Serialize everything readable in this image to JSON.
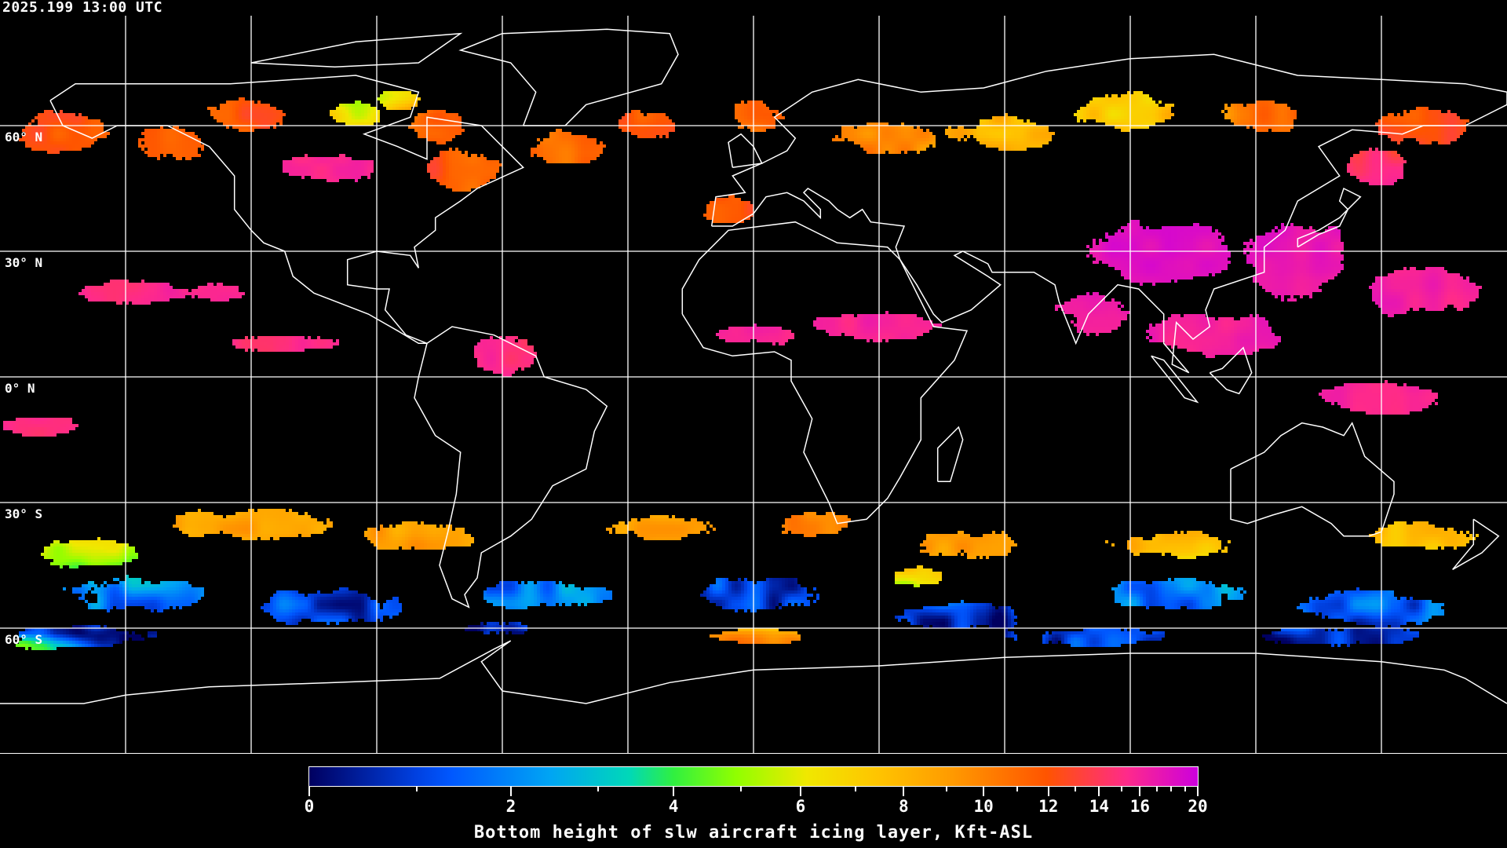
{
  "header": {
    "timestamp": "2025.199 13:00 UTC"
  },
  "map": {
    "projection": "equirectangular",
    "lon_range": [
      -180,
      180
    ],
    "lat_range": [
      -90,
      90
    ],
    "grid_spacing_deg": 30,
    "grid_color": "#ffffff",
    "coastline_color": "#ffffff",
    "lat_labels": [
      {
        "lat": 60,
        "text": "60° N"
      },
      {
        "lat": 30,
        "text": "30° N"
      },
      {
        "lat": 0,
        "text": "0° N"
      },
      {
        "lat": -30,
        "text": "30° S"
      },
      {
        "lat": -60,
        "text": "60° S"
      }
    ]
  },
  "colorbar": {
    "title": "Bottom height of slw aircraft icing layer, Kft-ASL",
    "range": [
      0,
      20
    ],
    "major_ticks": [
      {
        "value": 0,
        "label": "0"
      },
      {
        "value": 2,
        "label": "2"
      },
      {
        "value": 4,
        "label": "4"
      },
      {
        "value": 6,
        "label": "6"
      },
      {
        "value": 8,
        "label": "8"
      },
      {
        "value": 10,
        "label": "10"
      },
      {
        "value": 12,
        "label": "12"
      },
      {
        "value": 14,
        "label": "14"
      },
      {
        "value": 16,
        "label": "16"
      },
      {
        "value": 20,
        "label": "20"
      }
    ],
    "minor_ticks": [
      1,
      3,
      5,
      7,
      9,
      11,
      13,
      15,
      17,
      18,
      19
    ],
    "colors": [
      "#000060",
      "#0040e0",
      "#0058ff",
      "#00a4f4",
      "#00d8b8",
      "#30f040",
      "#90ff00",
      "#f0e800",
      "#ffc400",
      "#ff9c00",
      "#ff5400",
      "#ff2a8a",
      "#cc00dd"
    ]
  }
}
